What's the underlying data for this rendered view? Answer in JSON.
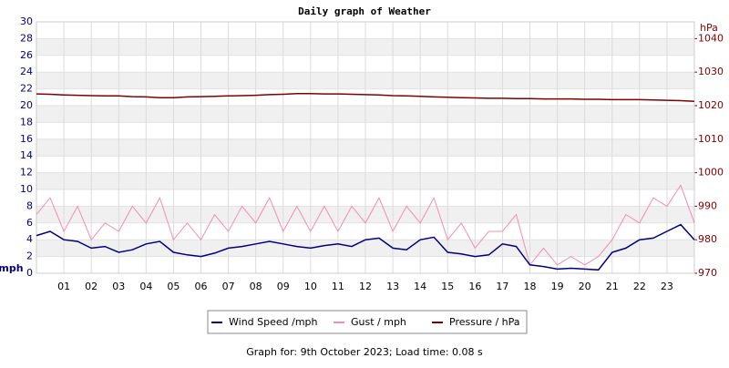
{
  "chart_data": {
    "type": "line",
    "title": "Daily graph of Weather",
    "y_label": "mph",
    "y2_label": "hPa",
    "caption": "Graph for: 9th October 2023; Load time: 0.08 s",
    "x": [
      0,
      0.5,
      1,
      1.5,
      2,
      2.5,
      3,
      3.5,
      4,
      4.5,
      5,
      5.5,
      6,
      6.5,
      7,
      7.5,
      8,
      8.5,
      9,
      9.5,
      10,
      10.5,
      11,
      11.5,
      12,
      12.5,
      13,
      13.5,
      14,
      14.5,
      15,
      15.5,
      16,
      16.5,
      17,
      17.5,
      18,
      18.5,
      19,
      19.5,
      20,
      20.5,
      21,
      21.5,
      22,
      22.5,
      23,
      23.5,
      24
    ],
    "series": [
      {
        "name": "Wind Speed /mph",
        "color": "#000080",
        "axis": "y",
        "values": [
          4.5,
          5,
          4,
          3.8,
          3,
          3.2,
          2.5,
          2.8,
          3.5,
          3.8,
          2.5,
          2.2,
          2,
          2.4,
          3,
          3.2,
          3.5,
          3.8,
          3.5,
          3.2,
          3,
          3.3,
          3.5,
          3.2,
          4,
          4.2,
          3,
          2.8,
          4,
          4.3,
          2.5,
          2.3,
          2,
          2.2,
          3.5,
          3.2,
          1,
          0.8,
          0.5,
          0.6,
          0.5,
          0.4,
          2.5,
          3,
          4,
          4.2,
          5,
          5.8,
          4
        ]
      },
      {
        "name": "Gust / mph",
        "color": "#f48cb4",
        "axis": "y",
        "values": [
          7,
          9,
          5,
          8,
          4,
          6,
          5,
          8,
          6,
          9,
          4,
          6,
          4,
          7,
          5,
          8,
          6,
          9,
          5,
          8,
          5,
          8,
          5,
          8,
          6,
          9,
          5,
          8,
          6,
          9,
          4,
          6,
          3,
          5,
          5,
          7,
          1,
          3,
          1,
          2,
          1,
          2,
          4,
          7,
          6,
          9,
          8,
          10.5,
          6
        ]
      },
      {
        "name": "Pressure / hPa",
        "color": "#800000",
        "axis": "y2",
        "values": [
          1023.5,
          1023.4,
          1023.2,
          1023.1,
          1023.0,
          1022.9,
          1022.9,
          1022.7,
          1022.6,
          1022.4,
          1022.4,
          1022.6,
          1022.7,
          1022.8,
          1022.9,
          1023.0,
          1023.1,
          1023.3,
          1023.4,
          1023.6,
          1023.6,
          1023.5,
          1023.5,
          1023.4,
          1023.3,
          1023.2,
          1023.0,
          1022.9,
          1022.8,
          1022.6,
          1022.5,
          1022.4,
          1022.3,
          1022.2,
          1022.2,
          1022.1,
          1022.1,
          1022.0,
          1022.0,
          1022.0,
          1021.9,
          1021.9,
          1021.8,
          1021.8,
          1021.8,
          1021.7,
          1021.6,
          1021.5,
          1021.3
        ]
      }
    ],
    "xlim": [
      0,
      24
    ],
    "xticks": [
      {
        "value": 1,
        "label": "01"
      },
      {
        "value": 2,
        "label": "02"
      },
      {
        "value": 3,
        "label": "03"
      },
      {
        "value": 4,
        "label": "04"
      },
      {
        "value": 5,
        "label": "05"
      },
      {
        "value": 6,
        "label": "06"
      },
      {
        "value": 7,
        "label": "07"
      },
      {
        "value": 8,
        "label": "08"
      },
      {
        "value": 9,
        "label": "09"
      },
      10,
      11,
      12,
      13,
      14,
      15,
      16,
      17,
      18,
      19,
      20,
      21,
      22,
      23
    ],
    "ylim": [
      0,
      30
    ],
    "yticks": [
      0,
      2,
      4,
      6,
      8,
      10,
      12,
      14,
      16,
      18,
      20,
      22,
      24,
      26,
      28,
      30
    ],
    "y2lim": [
      970,
      1045
    ],
    "y2ticks": [
      970,
      980,
      990,
      1000,
      1010,
      1020,
      1030,
      1040
    ],
    "grid": true,
    "legend": "bottom"
  }
}
